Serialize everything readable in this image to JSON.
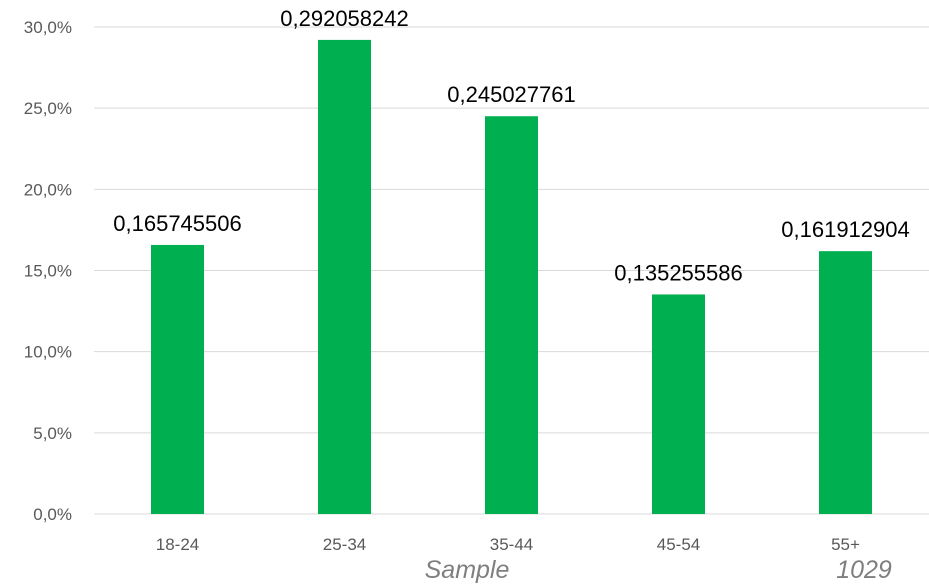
{
  "chart_data": {
    "type": "bar",
    "categories": [
      "18-24",
      "25-34",
      "35-44",
      "45-54",
      "55+"
    ],
    "values": [
      0.165745506,
      0.292058242,
      0.245027761,
      0.135255586,
      0.161912904
    ],
    "data_labels": [
      "0,165745506",
      "0,292058242",
      "0,245027761",
      "0,135255586",
      "0,161912904"
    ],
    "y_ticks": [
      "0,0%",
      "5,0%",
      "10,0%",
      "15,0%",
      "20,0%",
      "25,0%",
      "30,0%"
    ],
    "ylim": [
      0,
      0.3
    ],
    "grid": true,
    "bar_color": "#00b050",
    "gridline_color": "#d9d9d9",
    "annotations": {
      "sample_label": "Sample",
      "sample_size": "1029"
    }
  }
}
